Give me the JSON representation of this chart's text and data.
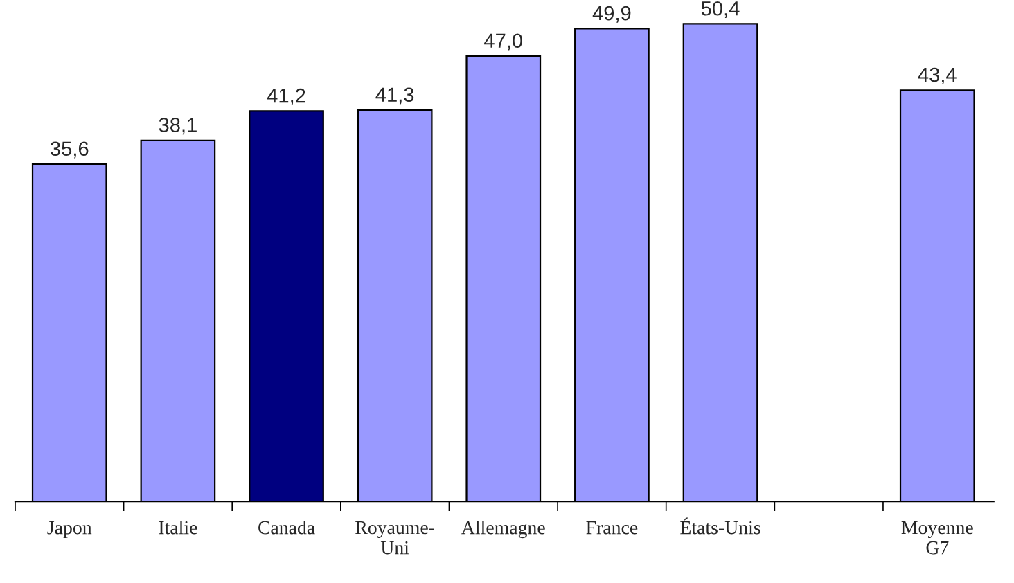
{
  "chart_data": {
    "type": "bar",
    "categories": [
      "Japon",
      "Italie",
      "Canada",
      "Royaume-\nUni",
      "Allemagne",
      "France",
      "États-Unis",
      null,
      "Moyenne\nG7"
    ],
    "values": [
      35.6,
      38.1,
      41.2,
      41.3,
      47.0,
      49.9,
      50.4,
      null,
      43.4
    ],
    "colors": [
      "#9999ff",
      "#9999ff",
      "#000080",
      "#9999ff",
      "#9999ff",
      "#9999ff",
      "#9999ff",
      "#9999ff",
      "#9999ff"
    ],
    "value_labels": [
      "35,6",
      "38,1",
      "41,2",
      "41,3",
      "47,0",
      "49,9",
      "50,4",
      null,
      "43,4"
    ],
    "grid": false,
    "legend": false
  }
}
